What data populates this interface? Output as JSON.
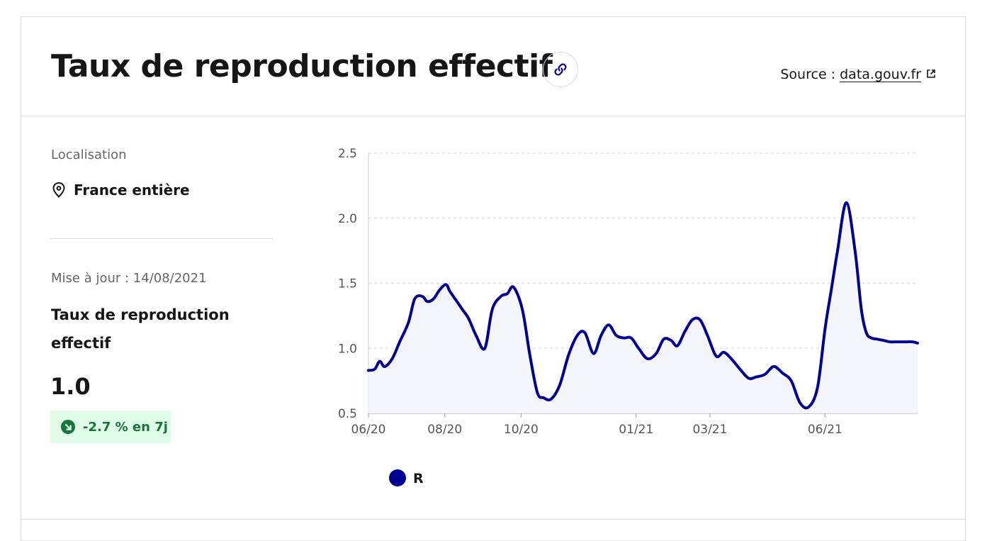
{
  "header": {
    "title": "Taux de reproduction effectif",
    "source_prefix": "Source : ",
    "source_link": "data.gouv.fr"
  },
  "sidebar": {
    "location_label": "Localisation",
    "location_value": "France entière",
    "update_text": "Mise à jour : 14/08/2021",
    "metric_title": "Taux de reproduction effectif",
    "metric_value": "1.0",
    "trend_text": "-2.7 % en 7j"
  },
  "icons": {
    "link": "link-icon",
    "external": "external-link-icon",
    "location": "map-pin-icon",
    "trend": "arrow-down-right-icon"
  },
  "colors": {
    "series": "#000091",
    "area_fill": "#f5f5fe",
    "trend_bg": "#dffde9",
    "trend_text": "#18753c"
  },
  "chart_data": {
    "type": "area",
    "title": "",
    "xlabel": "",
    "ylabel": "",
    "ylim": [
      0.5,
      2.5
    ],
    "yticks": [
      0.5,
      1.0,
      1.5,
      2.0,
      2.5
    ],
    "ytick_labels": [
      "0.5",
      "1.0",
      "1.5",
      "2.0",
      "2.5"
    ],
    "xlim": [
      "2020-06-01",
      "2021-08-14"
    ],
    "xticks": [
      "2020-06-01",
      "2020-08-01",
      "2020-10-01",
      "2021-01-01",
      "2021-03-01",
      "2021-06-01"
    ],
    "xtick_labels": [
      "06/20",
      "08/20",
      "10/20",
      "01/21",
      "03/21",
      "06/21"
    ],
    "grid": "horizontal-dashed",
    "legend": "bottom-left",
    "series": [
      {
        "name": "R",
        "x": [
          "2020-06-01",
          "2020-06-06",
          "2020-06-10",
          "2020-06-14",
          "2020-06-20",
          "2020-06-26",
          "2020-07-03",
          "2020-07-08",
          "2020-07-14",
          "2020-07-18",
          "2020-07-23",
          "2020-07-28",
          "2020-08-02",
          "2020-08-05",
          "2020-08-10",
          "2020-08-15",
          "2020-08-20",
          "2020-08-26",
          "2020-09-02",
          "2020-09-08",
          "2020-09-15",
          "2020-09-20",
          "2020-09-25",
          "2020-10-02",
          "2020-10-08",
          "2020-10-14",
          "2020-10-19",
          "2020-10-25",
          "2020-11-01",
          "2020-11-08",
          "2020-11-15",
          "2020-11-21",
          "2020-11-28",
          "2020-12-04",
          "2020-12-10",
          "2020-12-16",
          "2020-12-22",
          "2020-12-28",
          "2021-01-03",
          "2021-01-10",
          "2021-01-17",
          "2021-01-23",
          "2021-01-29",
          "2021-02-03",
          "2021-02-09",
          "2021-02-15",
          "2021-02-21",
          "2021-02-27",
          "2021-03-06",
          "2021-03-12",
          "2021-03-18",
          "2021-03-25",
          "2021-04-01",
          "2021-04-07",
          "2021-04-14",
          "2021-04-21",
          "2021-04-28",
          "2021-05-05",
          "2021-05-12",
          "2021-05-19",
          "2021-05-26",
          "2021-06-01",
          "2021-06-06",
          "2021-06-11",
          "2021-06-18",
          "2021-06-25",
          "2021-06-30",
          "2021-07-04",
          "2021-07-08",
          "2021-07-13",
          "2021-07-18",
          "2021-07-23",
          "2021-07-29",
          "2021-08-05",
          "2021-08-10",
          "2021-08-14"
        ],
        "y": [
          0.83,
          0.84,
          0.9,
          0.86,
          0.92,
          1.05,
          1.2,
          1.38,
          1.4,
          1.36,
          1.38,
          1.45,
          1.49,
          1.44,
          1.37,
          1.3,
          1.23,
          1.1,
          1.0,
          1.3,
          1.4,
          1.42,
          1.47,
          1.3,
          0.95,
          0.66,
          0.62,
          0.61,
          0.72,
          0.95,
          1.1,
          1.12,
          0.96,
          1.1,
          1.18,
          1.1,
          1.08,
          1.08,
          1.0,
          0.92,
          0.96,
          1.07,
          1.06,
          1.02,
          1.13,
          1.22,
          1.22,
          1.1,
          0.94,
          0.97,
          0.92,
          0.84,
          0.77,
          0.78,
          0.8,
          0.86,
          0.81,
          0.75,
          0.58,
          0.55,
          0.7,
          1.15,
          1.45,
          1.75,
          2.12,
          1.75,
          1.3,
          1.12,
          1.08,
          1.07,
          1.06,
          1.05,
          1.05,
          1.05,
          1.05,
          1.04
        ]
      }
    ]
  }
}
